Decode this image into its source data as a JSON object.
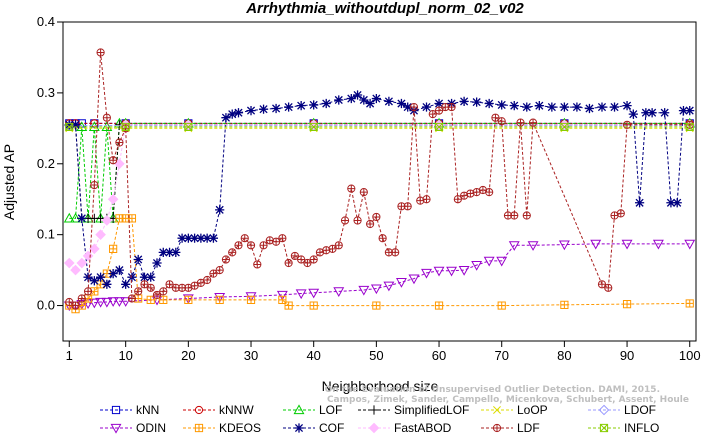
{
  "chart_data": {
    "type": "line",
    "title": "Arrhythmia_withoutdupl_norm_02_v02",
    "xlabel": "Neighborhood size",
    "ylabel": "Adjusted AP",
    "xlim": [
      0,
      101
    ],
    "ylim": [
      -0.05,
      0.4
    ],
    "x_ticks": [
      1,
      10,
      20,
      30,
      40,
      50,
      60,
      70,
      80,
      90,
      100
    ],
    "y_ticks": [
      0.0,
      0.1,
      0.2,
      0.3,
      0.4
    ],
    "y_tick_labels": [
      "0.0",
      "0.1",
      "0.2",
      "0.3",
      "0.4"
    ],
    "grid": false,
    "legend_position": "bottom",
    "watermark": [
      "Campos, Zimek, Sander, Campello, Micenkova, Schubert, Assent, Houle",
      "On the Evaluation of Unsupervised Outlier Detection. DAMI, 2015."
    ],
    "series": [
      {
        "name": "kNN",
        "color": "#0000cc",
        "marker": "square",
        "points": [
          [
            1,
            0.257
          ],
          [
            2,
            0.257
          ],
          [
            3,
            0.257
          ],
          [
            5,
            0.257
          ],
          [
            10,
            0.257
          ],
          [
            20,
            0.257
          ],
          [
            40,
            0.257
          ],
          [
            60,
            0.257
          ],
          [
            80,
            0.257
          ],
          [
            100,
            0.257
          ]
        ]
      },
      {
        "name": "kNNW",
        "color": "#cc0000",
        "marker": "circle",
        "points": [
          [
            1,
            0.257
          ],
          [
            2,
            0.257
          ],
          [
            5,
            0.257
          ],
          [
            10,
            0.257
          ],
          [
            20,
            0.257
          ],
          [
            40,
            0.257
          ],
          [
            60,
            0.257
          ],
          [
            80,
            0.257
          ],
          [
            100,
            0.257
          ]
        ]
      },
      {
        "name": "LOF",
        "color": "#00cc00",
        "marker": "triangle-up",
        "points": [
          [
            1,
            0.123
          ],
          [
            2,
            0.123
          ],
          [
            3,
            0.252
          ],
          [
            4,
            0.123
          ],
          [
            5,
            0.252
          ],
          [
            6,
            0.123
          ],
          [
            7,
            0.252
          ],
          [
            8,
            0.123
          ],
          [
            9,
            0.257
          ],
          [
            10,
            0.257
          ],
          [
            20,
            0.257
          ],
          [
            40,
            0.257
          ],
          [
            60,
            0.257
          ],
          [
            80,
            0.257
          ],
          [
            100,
            0.257
          ]
        ]
      },
      {
        "name": "SimplifiedLOF",
        "color": "#000000",
        "marker": "plus",
        "points": [
          [
            1,
            0.255
          ],
          [
            2,
            0.255
          ],
          [
            3,
            0.123
          ],
          [
            4,
            0.123
          ],
          [
            5,
            0.123
          ],
          [
            6,
            0.123
          ],
          [
            7,
            0.123
          ],
          [
            8,
            0.123
          ],
          [
            9,
            0.255
          ],
          [
            10,
            0.255
          ],
          [
            20,
            0.255
          ],
          [
            40,
            0.255
          ],
          [
            60,
            0.255
          ],
          [
            80,
            0.255
          ],
          [
            100,
            0.255
          ]
        ]
      },
      {
        "name": "LoOP",
        "color": "#dddd00",
        "marker": "x",
        "points": [
          [
            1,
            0.25
          ],
          [
            10,
            0.25
          ],
          [
            20,
            0.25
          ],
          [
            40,
            0.25
          ],
          [
            60,
            0.25
          ],
          [
            80,
            0.25
          ],
          [
            100,
            0.25
          ]
        ]
      },
      {
        "name": "LDOF",
        "color": "#9999ff",
        "marker": "diamond",
        "points": [
          [
            1,
            0.254
          ],
          [
            10,
            0.254
          ],
          [
            20,
            0.254
          ],
          [
            40,
            0.254
          ],
          [
            60,
            0.254
          ],
          [
            80,
            0.254
          ],
          [
            100,
            0.254
          ]
        ]
      },
      {
        "name": "ODIN",
        "color": "#9900cc",
        "marker": "triangle-down",
        "points": [
          [
            1,
            0.0
          ],
          [
            2,
            0.0
          ],
          [
            3,
            0.002
          ],
          [
            4,
            0.003
          ],
          [
            5,
            0.004
          ],
          [
            6,
            0.005
          ],
          [
            7,
            0.005
          ],
          [
            8,
            0.006
          ],
          [
            9,
            0.006
          ],
          [
            10,
            0.006
          ],
          [
            15,
            0.008
          ],
          [
            20,
            0.01
          ],
          [
            25,
            0.012
          ],
          [
            30,
            0.013
          ],
          [
            35,
            0.015
          ],
          [
            38,
            0.017
          ],
          [
            40,
            0.018
          ],
          [
            44,
            0.02
          ],
          [
            48,
            0.022
          ],
          [
            50,
            0.024
          ],
          [
            52,
            0.028
          ],
          [
            54,
            0.033
          ],
          [
            56,
            0.038
          ],
          [
            58,
            0.046
          ],
          [
            60,
            0.049
          ],
          [
            62,
            0.049
          ],
          [
            64,
            0.05
          ],
          [
            66,
            0.057
          ],
          [
            68,
            0.063
          ],
          [
            70,
            0.063
          ],
          [
            72,
            0.085
          ],
          [
            75,
            0.085
          ],
          [
            80,
            0.086
          ],
          [
            85,
            0.087
          ],
          [
            90,
            0.087
          ],
          [
            95,
            0.087
          ],
          [
            100,
            0.087
          ]
        ]
      },
      {
        "name": "KDEOS",
        "color": "#ff9900",
        "marker": "boxplus",
        "points": [
          [
            1,
            0.0
          ],
          [
            2,
            -0.005
          ],
          [
            3,
            0.0
          ],
          [
            4,
            0.01
          ],
          [
            5,
            0.02
          ],
          [
            6,
            0.03
          ],
          [
            7,
            0.045
          ],
          [
            8,
            0.08
          ],
          [
            9,
            0.123
          ],
          [
            10,
            0.123
          ],
          [
            11,
            0.123
          ],
          [
            12,
            0.01
          ],
          [
            14,
            0.008
          ],
          [
            16,
            0.008
          ],
          [
            20,
            0.008
          ],
          [
            25,
            0.008
          ],
          [
            30,
            0.008
          ],
          [
            35,
            0.008
          ],
          [
            36,
            0.0
          ],
          [
            40,
            0.0
          ],
          [
            50,
            0.0
          ],
          [
            60,
            0.0
          ],
          [
            70,
            0.0
          ],
          [
            80,
            0.001
          ],
          [
            90,
            0.002
          ],
          [
            100,
            0.003
          ]
        ]
      },
      {
        "name": "COF",
        "color": "#000080",
        "marker": "asterisk",
        "points": [
          [
            1,
            0.255
          ],
          [
            2,
            0.255
          ],
          [
            3,
            0.123
          ],
          [
            4,
            0.04
          ],
          [
            5,
            0.035
          ],
          [
            6,
            0.04
          ],
          [
            7,
            0.03
          ],
          [
            8,
            0.045
          ],
          [
            9,
            0.05
          ],
          [
            10,
            0.03
          ],
          [
            11,
            0.04
          ],
          [
            12,
            0.065
          ],
          [
            13,
            0.04
          ],
          [
            14,
            0.04
          ],
          [
            15,
            0.06
          ],
          [
            16,
            0.075
          ],
          [
            17,
            0.075
          ],
          [
            18,
            0.075
          ],
          [
            19,
            0.095
          ],
          [
            20,
            0.095
          ],
          [
            21,
            0.095
          ],
          [
            22,
            0.095
          ],
          [
            23,
            0.095
          ],
          [
            24,
            0.095
          ],
          [
            25,
            0.135
          ],
          [
            26,
            0.265
          ],
          [
            27,
            0.27
          ],
          [
            28,
            0.272
          ],
          [
            30,
            0.275
          ],
          [
            32,
            0.277
          ],
          [
            34,
            0.278
          ],
          [
            36,
            0.28
          ],
          [
            38,
            0.282
          ],
          [
            40,
            0.283
          ],
          [
            42,
            0.285
          ],
          [
            44,
            0.29
          ],
          [
            46,
            0.292
          ],
          [
            47,
            0.297
          ],
          [
            48,
            0.29
          ],
          [
            49,
            0.285
          ],
          [
            50,
            0.292
          ],
          [
            52,
            0.288
          ],
          [
            54,
            0.285
          ],
          [
            55,
            0.28
          ],
          [
            56,
            0.275
          ],
          [
            58,
            0.28
          ],
          [
            60,
            0.285
          ],
          [
            62,
            0.285
          ],
          [
            64,
            0.288
          ],
          [
            66,
            0.287
          ],
          [
            68,
            0.285
          ],
          [
            70,
            0.283
          ],
          [
            72,
            0.282
          ],
          [
            74,
            0.28
          ],
          [
            76,
            0.282
          ],
          [
            78,
            0.28
          ],
          [
            80,
            0.28
          ],
          [
            82,
            0.28
          ],
          [
            84,
            0.278
          ],
          [
            86,
            0.28
          ],
          [
            88,
            0.28
          ],
          [
            90,
            0.282
          ],
          [
            91,
            0.27
          ],
          [
            92,
            0.145
          ],
          [
            93,
            0.272
          ],
          [
            94,
            0.272
          ],
          [
            96,
            0.272
          ],
          [
            97,
            0.145
          ],
          [
            98,
            0.145
          ],
          [
            99,
            0.275
          ],
          [
            100,
            0.275
          ]
        ]
      },
      {
        "name": "FastABOD",
        "color": "#ffbbff",
        "marker": "diamond",
        "points": [
          [
            1,
            0.06
          ],
          [
            2,
            0.05
          ],
          [
            3,
            0.06
          ],
          [
            4,
            0.07
          ],
          [
            5,
            0.08
          ],
          [
            6,
            0.1
          ],
          [
            7,
            0.12
          ],
          [
            8,
            0.15
          ],
          [
            9,
            0.2
          ],
          [
            10,
            0.255
          ],
          [
            20,
            0.255
          ],
          [
            40,
            0.255
          ],
          [
            60,
            0.255
          ],
          [
            80,
            0.255
          ],
          [
            100,
            0.255
          ]
        ]
      },
      {
        "name": "LDF",
        "color": "#aa2222",
        "marker": "circle-plus",
        "points": [
          [
            1,
            0.005
          ],
          [
            2,
            0.0
          ],
          [
            3,
            0.01
          ],
          [
            4,
            0.02
          ],
          [
            5,
            0.17
          ],
          [
            6,
            0.357
          ],
          [
            7,
            0.265
          ],
          [
            8,
            0.205
          ],
          [
            9,
            0.23
          ],
          [
            10,
            0.25
          ],
          [
            11,
            0.01
          ],
          [
            12,
            0.02
          ],
          [
            13,
            0.03
          ],
          [
            14,
            0.025
          ],
          [
            15,
            0.015
          ],
          [
            16,
            0.02
          ],
          [
            17,
            0.03
          ],
          [
            18,
            0.025
          ],
          [
            19,
            0.025
          ],
          [
            20,
            0.025
          ],
          [
            21,
            0.028
          ],
          [
            22,
            0.032
          ],
          [
            23,
            0.036
          ],
          [
            24,
            0.045
          ],
          [
            25,
            0.05
          ],
          [
            26,
            0.065
          ],
          [
            27,
            0.075
          ],
          [
            28,
            0.085
          ],
          [
            29,
            0.095
          ],
          [
            30,
            0.085
          ],
          [
            31,
            0.058
          ],
          [
            32,
            0.085
          ],
          [
            33,
            0.092
          ],
          [
            34,
            0.09
          ],
          [
            35,
            0.095
          ],
          [
            36,
            0.06
          ],
          [
            37,
            0.07
          ],
          [
            38,
            0.065
          ],
          [
            39,
            0.06
          ],
          [
            40,
            0.065
          ],
          [
            41,
            0.075
          ],
          [
            42,
            0.078
          ],
          [
            43,
            0.08
          ],
          [
            44,
            0.085
          ],
          [
            45,
            0.12
          ],
          [
            46,
            0.165
          ],
          [
            47,
            0.12
          ],
          [
            48,
            0.16
          ],
          [
            49,
            0.115
          ],
          [
            50,
            0.125
          ],
          [
            51,
            0.095
          ],
          [
            52,
            0.075
          ],
          [
            53,
            0.075
          ],
          [
            54,
            0.14
          ],
          [
            55,
            0.14
          ],
          [
            56,
            0.28
          ],
          [
            57,
            0.148
          ],
          [
            58,
            0.15
          ],
          [
            59,
            0.27
          ],
          [
            60,
            0.275
          ],
          [
            61,
            0.28
          ],
          [
            62,
            0.28
          ],
          [
            63,
            0.15
          ],
          [
            64,
            0.155
          ],
          [
            65,
            0.158
          ],
          [
            66,
            0.16
          ],
          [
            67,
            0.163
          ],
          [
            68,
            0.16
          ],
          [
            69,
            0.265
          ],
          [
            70,
            0.26
          ],
          [
            71,
            0.127
          ],
          [
            72,
            0.127
          ],
          [
            73,
            0.258
          ],
          [
            74,
            0.127
          ],
          [
            75,
            0.258
          ],
          [
            86,
            0.03
          ],
          [
            87,
            0.025
          ],
          [
            88,
            0.127
          ],
          [
            89,
            0.13
          ],
          [
            90,
            0.255
          ],
          [
            100,
            0.255
          ]
        ]
      },
      {
        "name": "INFLO",
        "color": "#88cc00",
        "marker": "boxtimes",
        "points": [
          [
            1,
            0.252
          ],
          [
            10,
            0.252
          ],
          [
            20,
            0.252
          ],
          [
            40,
            0.252
          ],
          [
            60,
            0.252
          ],
          [
            80,
            0.252
          ],
          [
            100,
            0.252
          ]
        ]
      }
    ]
  }
}
